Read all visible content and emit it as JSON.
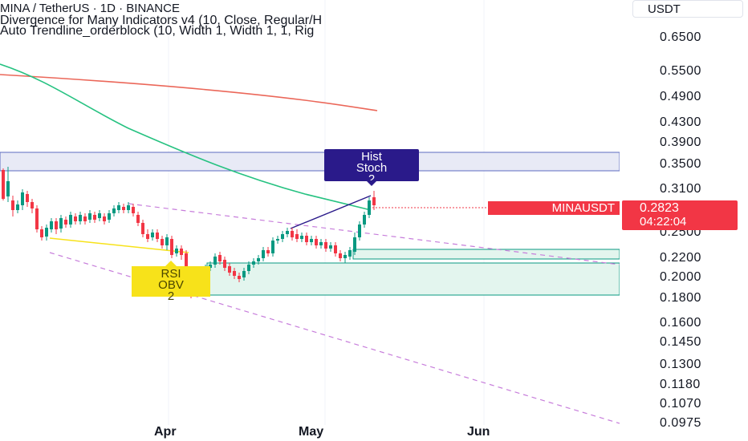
{
  "legend": {
    "title": "MINA / TetherUS · 1D · BINANCE",
    "indicator1": "Divergence for Many Indicators v4 (10, Close, Regular/H",
    "indicator2": "Auto Trendline_orderblock (10, Width 1, Width 1, 1, Rig"
  },
  "currency": "USDT",
  "price_axis": {
    "ticks": [
      "0.6500",
      "0.5500",
      "0.4900",
      "0.4300",
      "0.3900",
      "0.3500",
      "0.3100",
      "0.2500",
      "0.2200",
      "0.2000",
      "0.1800",
      "0.1600",
      "0.1450",
      "0.1300",
      "0.1180",
      "0.1070",
      "0.0975"
    ]
  },
  "time_axis": {
    "labels": [
      "Apr",
      "May",
      "Jun"
    ]
  },
  "current_price": {
    "symbol": "MINAUSDT",
    "price": "0.2823",
    "countdown": "04:22:04"
  },
  "labels": {
    "hist": [
      "Hist",
      "Stoch",
      "2"
    ],
    "rsi": [
      "RSI",
      "OBV",
      "2"
    ]
  },
  "colors": {
    "up": "#089981",
    "down": "#f23645",
    "ma_fast": "#26c281",
    "ma_slow": "#e74c3c",
    "supply_zone": "#c5cae9",
    "demand_zone": "#d4f0e6",
    "bearish_label": "#2a1a8a",
    "bullish_label": "#f7e21a"
  }
}
